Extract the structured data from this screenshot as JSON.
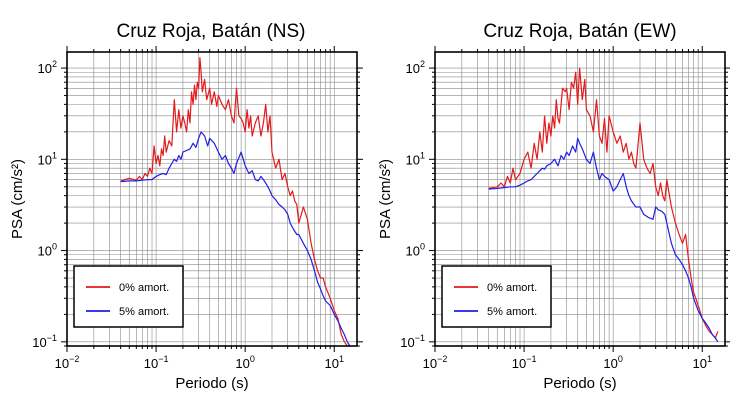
{
  "chart_data": [
    {
      "type": "line",
      "title": "Cruz Roja, Batán (NS)",
      "xlabel": "Periodo (s)",
      "ylabel": "PSA (cm/s²)",
      "xscale": "log",
      "yscale": "log",
      "xlim": [
        0.01,
        18
      ],
      "ylim": [
        0.09,
        150
      ],
      "x_ticks": [
        {
          "value": 0.01,
          "base": "10",
          "exp": "−2"
        },
        {
          "value": 0.1,
          "base": "10",
          "exp": "−1"
        },
        {
          "value": 1,
          "base": "10",
          "exp": "0"
        },
        {
          "value": 10,
          "base": "10",
          "exp": "1"
        }
      ],
      "y_ticks": [
        {
          "value": 0.1,
          "label": "10",
          "exp": "−1"
        },
        {
          "value": 1,
          "label": "10",
          "exp": "0"
        },
        {
          "value": 10,
          "label": "10",
          "exp": "1"
        },
        {
          "value": 100,
          "label": "10",
          "exp": "2"
        }
      ],
      "grid": true,
      "legend_position": "bottom-left",
      "series": [
        {
          "name": "0% amort.",
          "color": "#e31a1c",
          "x": [
            0.04,
            0.05,
            0.06,
            0.065,
            0.07,
            0.075,
            0.08,
            0.085,
            0.09,
            0.095,
            0.1,
            0.105,
            0.11,
            0.115,
            0.12,
            0.125,
            0.13,
            0.14,
            0.15,
            0.16,
            0.17,
            0.18,
            0.19,
            0.2,
            0.21,
            0.22,
            0.23,
            0.24,
            0.25,
            0.26,
            0.27,
            0.28,
            0.29,
            0.3,
            0.31,
            0.32,
            0.33,
            0.35,
            0.37,
            0.4,
            0.42,
            0.45,
            0.48,
            0.5,
            0.55,
            0.6,
            0.65,
            0.7,
            0.75,
            0.8,
            0.85,
            0.9,
            0.95,
            1.0,
            1.05,
            1.1,
            1.15,
            1.2,
            1.3,
            1.4,
            1.5,
            1.6,
            1.7,
            1.8,
            1.9,
            2.0,
            2.2,
            2.4,
            2.6,
            2.8,
            3.0,
            3.2,
            3.4,
            3.6,
            3.8,
            4.0,
            4.5,
            5.0,
            5.5,
            6.0,
            6.5,
            7.0,
            7.5,
            8.0,
            9.0,
            10.0,
            11.0,
            12.0,
            13.0,
            14.0,
            15.0
          ],
          "y": [
            5.8,
            6.2,
            5.9,
            6.5,
            6.0,
            7.0,
            6.5,
            8.0,
            7.0,
            14.0,
            9.0,
            11.0,
            8.5,
            13.0,
            11.0,
            18.0,
            12.0,
            16.0,
            14.0,
            45.0,
            20.0,
            35.0,
            22.0,
            30.0,
            25.0,
            20.0,
            35.0,
            25.0,
            55.0,
            40.0,
            65.0,
            45.0,
            70.0,
            60.0,
            130.0,
            90.0,
            55.0,
            75.0,
            45.0,
            60.0,
            40.0,
            55.0,
            38.0,
            50.0,
            40.0,
            35.0,
            45.0,
            30.0,
            25.0,
            60.0,
            30.0,
            28.0,
            25.0,
            20.0,
            35.0,
            22.0,
            30.0,
            18.0,
            25.0,
            30.0,
            18.0,
            25.0,
            40.0,
            20.0,
            30.0,
            12.0,
            8.0,
            10.0,
            6.0,
            7.0,
            5.0,
            4.0,
            4.5,
            3.5,
            3.2,
            2.0,
            3.0,
            2.2,
            1.2,
            0.8,
            0.6,
            0.5,
            0.5,
            0.4,
            0.3,
            0.22,
            0.18,
            0.12,
            0.1,
            0.09,
            0.08
          ]
        },
        {
          "name": "5% amort.",
          "color": "#1f1fe6",
          "x": [
            0.04,
            0.05,
            0.06,
            0.07,
            0.08,
            0.09,
            0.1,
            0.11,
            0.12,
            0.13,
            0.14,
            0.15,
            0.16,
            0.17,
            0.18,
            0.19,
            0.2,
            0.22,
            0.24,
            0.26,
            0.28,
            0.3,
            0.32,
            0.35,
            0.38,
            0.4,
            0.45,
            0.5,
            0.55,
            0.6,
            0.65,
            0.7,
            0.75,
            0.8,
            0.9,
            1.0,
            1.1,
            1.2,
            1.3,
            1.4,
            1.5,
            1.6,
            1.7,
            1.8,
            1.9,
            2.0,
            2.2,
            2.4,
            2.6,
            2.8,
            3.0,
            3.2,
            3.5,
            3.8,
            4.0,
            4.5,
            5.0,
            5.5,
            6.0,
            6.5,
            7.0,
            7.5,
            8.0,
            9.0,
            10.0,
            11.0,
            12.0,
            13.0,
            14.0,
            15.0
          ],
          "y": [
            5.7,
            5.8,
            5.8,
            5.9,
            6.0,
            6.0,
            6.5,
            6.8,
            7.0,
            6.8,
            8.0,
            9.0,
            10.0,
            9.5,
            11.0,
            10.0,
            12.0,
            12.5,
            13.0,
            15.0,
            13.5,
            17.0,
            20.0,
            18.0,
            14.0,
            17.0,
            15.0,
            12.0,
            10.0,
            11.0,
            9.0,
            8.0,
            7.0,
            9.0,
            12.0,
            8.5,
            7.0,
            7.5,
            6.0,
            5.8,
            6.5,
            6.0,
            5.5,
            5.0,
            4.5,
            4.0,
            3.6,
            3.2,
            3.0,
            2.8,
            2.5,
            2.0,
            1.7,
            1.5,
            1.5,
            1.2,
            1.0,
            0.8,
            0.6,
            0.45,
            0.38,
            0.32,
            0.28,
            0.25,
            0.2,
            0.17,
            0.14,
            0.12,
            0.1,
            0.09
          ]
        }
      ]
    },
    {
      "type": "line",
      "title": "Cruz Roja, Batán (EW)",
      "xlabel": "Periodo (s)",
      "ylabel": "PSA (cm/s²)",
      "xscale": "log",
      "yscale": "log",
      "xlim": [
        0.01,
        18
      ],
      "ylim": [
        0.09,
        150
      ],
      "x_ticks": [
        {
          "value": 0.01,
          "base": "10",
          "exp": "−2"
        },
        {
          "value": 0.1,
          "base": "10",
          "exp": "−1"
        },
        {
          "value": 1,
          "base": "10",
          "exp": "0"
        },
        {
          "value": 10,
          "base": "10",
          "exp": "1"
        }
      ],
      "y_ticks": [
        {
          "value": 0.1,
          "label": "10",
          "exp": "−1"
        },
        {
          "value": 1,
          "label": "10",
          "exp": "0"
        },
        {
          "value": 10,
          "label": "10",
          "exp": "1"
        },
        {
          "value": 100,
          "label": "10",
          "exp": "2"
        }
      ],
      "grid": true,
      "legend_position": "bottom-left",
      "series": [
        {
          "name": "0% amort.",
          "color": "#e31a1c",
          "x": [
            0.04,
            0.05,
            0.055,
            0.06,
            0.065,
            0.07,
            0.075,
            0.08,
            0.09,
            0.1,
            0.11,
            0.12,
            0.13,
            0.14,
            0.15,
            0.16,
            0.17,
            0.18,
            0.19,
            0.2,
            0.21,
            0.22,
            0.23,
            0.24,
            0.25,
            0.27,
            0.29,
            0.3,
            0.32,
            0.34,
            0.36,
            0.38,
            0.4,
            0.42,
            0.45,
            0.48,
            0.5,
            0.55,
            0.6,
            0.65,
            0.7,
            0.75,
            0.8,
            0.85,
            0.9,
            1.0,
            1.1,
            1.2,
            1.3,
            1.4,
            1.5,
            1.6,
            1.7,
            1.8,
            2.0,
            2.2,
            2.4,
            2.6,
            2.8,
            3.0,
            3.2,
            3.4,
            3.6,
            3.8,
            4.0,
            4.5,
            5.0,
            5.5,
            6.0,
            6.5,
            7.0,
            7.5,
            8.0,
            9.0,
            10.0,
            11.0,
            12.0,
            13.0,
            14.0,
            15.0
          ],
          "y": [
            4.8,
            5.0,
            5.5,
            5.0,
            6.5,
            5.5,
            8.0,
            6.0,
            7.0,
            10.0,
            12.0,
            8.0,
            15.0,
            10.0,
            20.0,
            12.0,
            30.0,
            15.0,
            25.0,
            18.0,
            30.0,
            22.0,
            45.0,
            28.0,
            25.0,
            60.0,
            55.0,
            60.0,
            35.0,
            70.0,
            60.0,
            90.0,
            40.0,
            100.0,
            45.0,
            75.0,
            35.0,
            30.0,
            20.0,
            45.0,
            18.0,
            15.0,
            28.0,
            12.0,
            30.0,
            20.0,
            15.0,
            18.0,
            12.0,
            15.0,
            10.0,
            12.0,
            9.0,
            8.0,
            25.0,
            10.0,
            8.0,
            7.0,
            9.0,
            5.0,
            4.0,
            5.5,
            4.0,
            3.5,
            6.0,
            3.0,
            2.0,
            1.5,
            1.2,
            1.5,
            0.8,
            0.5,
            0.35,
            0.25,
            0.18,
            0.15,
            0.13,
            0.12,
            0.11,
            0.13
          ]
        },
        {
          "name": "5% amort.",
          "color": "#1f1fe6",
          "x": [
            0.04,
            0.05,
            0.06,
            0.07,
            0.08,
            0.09,
            0.1,
            0.11,
            0.12,
            0.13,
            0.14,
            0.15,
            0.16,
            0.17,
            0.18,
            0.2,
            0.22,
            0.24,
            0.26,
            0.28,
            0.3,
            0.32,
            0.35,
            0.38,
            0.4,
            0.42,
            0.45,
            0.5,
            0.55,
            0.6,
            0.65,
            0.7,
            0.75,
            0.8,
            0.9,
            1.0,
            1.1,
            1.2,
            1.3,
            1.4,
            1.5,
            1.6,
            1.8,
            2.0,
            2.2,
            2.5,
            2.8,
            3.0,
            3.2,
            3.5,
            3.8,
            4.0,
            4.5,
            5.0,
            5.5,
            6.0,
            6.5,
            7.0,
            7.5,
            8.0,
            9.0,
            10.0,
            11.0,
            12.0,
            13.0,
            14.0,
            15.0
          ],
          "y": [
            4.7,
            4.8,
            4.9,
            5.0,
            5.0,
            5.2,
            5.5,
            5.8,
            6.0,
            6.5,
            7.0,
            7.5,
            8.0,
            7.8,
            8.5,
            9.0,
            10.0,
            8.5,
            11.0,
            10.0,
            12.0,
            11.0,
            14.0,
            12.0,
            17.0,
            15.0,
            13.0,
            10.0,
            9.0,
            12.0,
            8.0,
            6.0,
            7.0,
            6.5,
            6.0,
            4.5,
            5.0,
            6.0,
            7.0,
            5.0,
            4.0,
            3.5,
            3.0,
            3.0,
            2.5,
            2.3,
            2.2,
            3.0,
            2.8,
            2.7,
            2.5,
            2.0,
            1.2,
            0.9,
            0.8,
            0.7,
            0.6,
            0.5,
            0.4,
            0.3,
            0.22,
            0.18,
            0.16,
            0.14,
            0.12,
            0.11,
            0.1
          ]
        }
      ]
    }
  ]
}
